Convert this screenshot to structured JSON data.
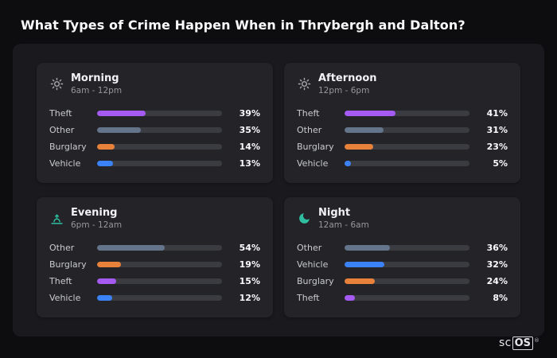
{
  "header": {
    "title": "What Types of Crime Happen When in Thrybergh and Dalton?"
  },
  "footer": {
    "brand_prefix": "sc",
    "brand_suffix": "OS",
    "reg": "®"
  },
  "colors": {
    "Theft": "#a55bf2",
    "Other": "#64748b",
    "Burglary": "#e8823a",
    "Vehicle": "#3b82f6",
    "track": "#3b3b42",
    "icon_gray": "#a6a6ae",
    "icon_teal": "#2fbfa0"
  },
  "chart_data": [
    {
      "type": "bar",
      "title": "Morning",
      "subtitle": "6am - 12pm",
      "icon": "sun-icon",
      "icon_color": "gray",
      "categories": [
        "Theft",
        "Other",
        "Burglary",
        "Vehicle"
      ],
      "values": [
        39,
        35,
        14,
        13
      ],
      "unit": "%",
      "xlim": [
        0,
        100
      ]
    },
    {
      "type": "bar",
      "title": "Afternoon",
      "subtitle": "12pm - 6pm",
      "icon": "sun-icon",
      "icon_color": "gray",
      "categories": [
        "Theft",
        "Other",
        "Burglary",
        "Vehicle"
      ],
      "values": [
        41,
        31,
        23,
        5
      ],
      "unit": "%",
      "xlim": [
        0,
        100
      ]
    },
    {
      "type": "bar",
      "title": "Evening",
      "subtitle": "6pm - 12am",
      "icon": "sunset-icon",
      "icon_color": "teal",
      "categories": [
        "Other",
        "Burglary",
        "Theft",
        "Vehicle"
      ],
      "values": [
        54,
        19,
        15,
        12
      ],
      "unit": "%",
      "xlim": [
        0,
        100
      ]
    },
    {
      "type": "bar",
      "title": "Night",
      "subtitle": "12am - 6am",
      "icon": "moon-icon",
      "icon_color": "teal",
      "categories": [
        "Other",
        "Vehicle",
        "Burglary",
        "Theft"
      ],
      "values": [
        36,
        32,
        24,
        8
      ],
      "unit": "%",
      "xlim": [
        0,
        100
      ]
    }
  ]
}
